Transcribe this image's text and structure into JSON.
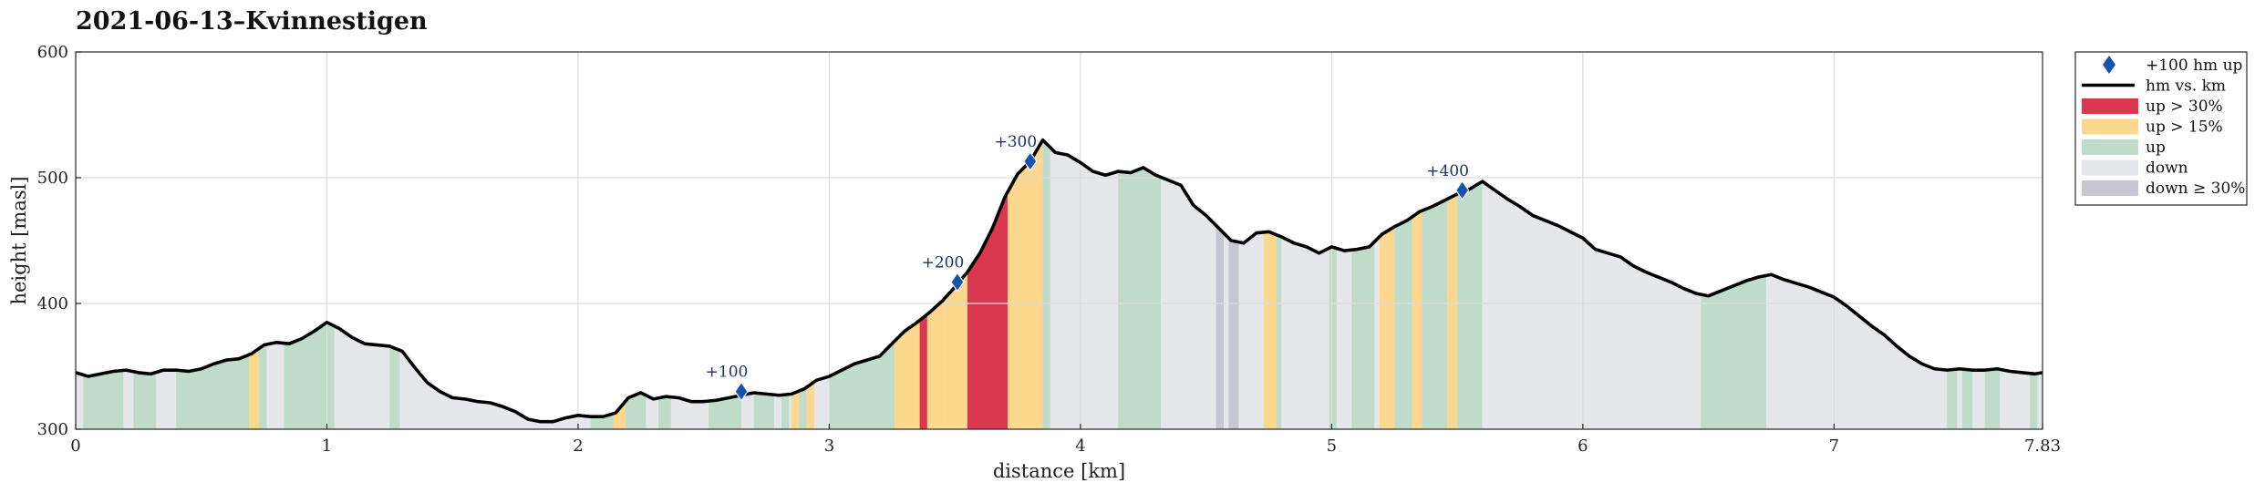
{
  "chart_data": {
    "type": "area",
    "title": "2021-06-13–Kvinnestigen",
    "xlabel": "distance [km]",
    "ylabel": "height [masl]",
    "xlim": [
      0,
      7.83
    ],
    "ylim": [
      300,
      600
    ],
    "x_ticks": [
      "0",
      "1",
      "2",
      "3",
      "4",
      "5",
      "6",
      "7",
      "7.83"
    ],
    "x_tick_values": [
      0,
      1,
      2,
      3,
      4,
      5,
      6,
      7,
      7.83
    ],
    "y_ticks": [
      "300",
      "400",
      "500",
      "600"
    ],
    "y_tick_values": [
      300,
      400,
      500,
      600
    ],
    "grid": true,
    "legend_position": "outside-top-right",
    "colors": {
      "line": "#000000",
      "up30": "#d9384e",
      "up15": "#fbd88d",
      "up": "#bfdcca",
      "down": "#e6e7eb",
      "down30": "#c6c7d0",
      "marker": "#1553b0",
      "annotation": "#1e2f6b",
      "grid": "#dcdcdc"
    },
    "legend": [
      {
        "label": "+100 hm up",
        "kind": "marker"
      },
      {
        "label": "hm vs. km",
        "kind": "line"
      },
      {
        "label": "up > 30%",
        "kind": "up30"
      },
      {
        "label": "up > 15%",
        "kind": "up15"
      },
      {
        "label": "up",
        "kind": "up"
      },
      {
        "label": "down",
        "kind": "down"
      },
      {
        "label": "down ≥ 30%",
        "kind": "down30"
      }
    ],
    "profile": [
      [
        0.0,
        345
      ],
      [
        0.05,
        342
      ],
      [
        0.1,
        344
      ],
      [
        0.15,
        346
      ],
      [
        0.2,
        347
      ],
      [
        0.25,
        345
      ],
      [
        0.3,
        344
      ],
      [
        0.35,
        347
      ],
      [
        0.4,
        347
      ],
      [
        0.45,
        346
      ],
      [
        0.5,
        348
      ],
      [
        0.55,
        352
      ],
      [
        0.6,
        355
      ],
      [
        0.65,
        356
      ],
      [
        0.7,
        360
      ],
      [
        0.75,
        367
      ],
      [
        0.8,
        369
      ],
      [
        0.85,
        368
      ],
      [
        0.9,
        372
      ],
      [
        0.95,
        378
      ],
      [
        1.0,
        385
      ],
      [
        1.05,
        380
      ],
      [
        1.1,
        373
      ],
      [
        1.15,
        368
      ],
      [
        1.2,
        367
      ],
      [
        1.25,
        366
      ],
      [
        1.3,
        362
      ],
      [
        1.35,
        349
      ],
      [
        1.4,
        337
      ],
      [
        1.45,
        330
      ],
      [
        1.5,
        325
      ],
      [
        1.55,
        324
      ],
      [
        1.6,
        322
      ],
      [
        1.65,
        321
      ],
      [
        1.7,
        318
      ],
      [
        1.75,
        314
      ],
      [
        1.8,
        308
      ],
      [
        1.85,
        306
      ],
      [
        1.9,
        306
      ],
      [
        1.95,
        309
      ],
      [
        2.0,
        311
      ],
      [
        2.05,
        310
      ],
      [
        2.1,
        310
      ],
      [
        2.15,
        313
      ],
      [
        2.2,
        325
      ],
      [
        2.25,
        329
      ],
      [
        2.3,
        324
      ],
      [
        2.35,
        326
      ],
      [
        2.4,
        325
      ],
      [
        2.45,
        322
      ],
      [
        2.5,
        322
      ],
      [
        2.55,
        323
      ],
      [
        2.6,
        325
      ],
      [
        2.65,
        327
      ],
      [
        2.7,
        329
      ],
      [
        2.75,
        328
      ],
      [
        2.8,
        327
      ],
      [
        2.85,
        328
      ],
      [
        2.9,
        332
      ],
      [
        2.95,
        339
      ],
      [
        3.0,
        342
      ],
      [
        3.05,
        347
      ],
      [
        3.1,
        352
      ],
      [
        3.15,
        355
      ],
      [
        3.2,
        358
      ],
      [
        3.25,
        368
      ],
      [
        3.3,
        378
      ],
      [
        3.35,
        385
      ],
      [
        3.4,
        393
      ],
      [
        3.45,
        402
      ],
      [
        3.5,
        413
      ],
      [
        3.55,
        425
      ],
      [
        3.6,
        440
      ],
      [
        3.65,
        460
      ],
      [
        3.7,
        485
      ],
      [
        3.75,
        503
      ],
      [
        3.8,
        513
      ],
      [
        3.85,
        530
      ],
      [
        3.9,
        520
      ],
      [
        3.95,
        518
      ],
      [
        4.0,
        512
      ],
      [
        4.05,
        505
      ],
      [
        4.1,
        502
      ],
      [
        4.15,
        505
      ],
      [
        4.2,
        504
      ],
      [
        4.25,
        508
      ],
      [
        4.3,
        502
      ],
      [
        4.35,
        498
      ],
      [
        4.4,
        494
      ],
      [
        4.45,
        478
      ],
      [
        4.5,
        470
      ],
      [
        4.55,
        460
      ],
      [
        4.6,
        450
      ],
      [
        4.65,
        448
      ],
      [
        4.7,
        456
      ],
      [
        4.75,
        457
      ],
      [
        4.8,
        453
      ],
      [
        4.85,
        448
      ],
      [
        4.9,
        445
      ],
      [
        4.95,
        440
      ],
      [
        5.0,
        445
      ],
      [
        5.05,
        442
      ],
      [
        5.1,
        443
      ],
      [
        5.15,
        445
      ],
      [
        5.2,
        455
      ],
      [
        5.25,
        461
      ],
      [
        5.3,
        466
      ],
      [
        5.35,
        473
      ],
      [
        5.4,
        477
      ],
      [
        5.45,
        482
      ],
      [
        5.5,
        487
      ],
      [
        5.55,
        491
      ],
      [
        5.6,
        497
      ],
      [
        5.65,
        490
      ],
      [
        5.7,
        483
      ],
      [
        5.75,
        477
      ],
      [
        5.8,
        470
      ],
      [
        5.85,
        466
      ],
      [
        5.9,
        462
      ],
      [
        5.95,
        457
      ],
      [
        6.0,
        452
      ],
      [
        6.05,
        443
      ],
      [
        6.1,
        440
      ],
      [
        6.15,
        437
      ],
      [
        6.2,
        430
      ],
      [
        6.25,
        425
      ],
      [
        6.3,
        421
      ],
      [
        6.35,
        417
      ],
      [
        6.4,
        412
      ],
      [
        6.45,
        408
      ],
      [
        6.5,
        406
      ],
      [
        6.55,
        410
      ],
      [
        6.6,
        414
      ],
      [
        6.65,
        418
      ],
      [
        6.7,
        421
      ],
      [
        6.75,
        423
      ],
      [
        6.8,
        419
      ],
      [
        6.85,
        416
      ],
      [
        6.9,
        413
      ],
      [
        6.95,
        409
      ],
      [
        7.0,
        405
      ],
      [
        7.05,
        398
      ],
      [
        7.1,
        390
      ],
      [
        7.15,
        382
      ],
      [
        7.2,
        375
      ],
      [
        7.25,
        366
      ],
      [
        7.3,
        358
      ],
      [
        7.35,
        352
      ],
      [
        7.4,
        348
      ],
      [
        7.45,
        347
      ],
      [
        7.5,
        348
      ],
      [
        7.55,
        347
      ],
      [
        7.6,
        347
      ],
      [
        7.65,
        348
      ],
      [
        7.7,
        346
      ],
      [
        7.75,
        345
      ],
      [
        7.8,
        344
      ],
      [
        7.83,
        345
      ]
    ],
    "segments": [
      {
        "from": 0.03,
        "to": 0.19,
        "kind": "up"
      },
      {
        "from": 0.23,
        "to": 0.32,
        "kind": "up"
      },
      {
        "from": 0.4,
        "to": 0.69,
        "kind": "up"
      },
      {
        "from": 0.69,
        "to": 0.73,
        "kind": "up15"
      },
      {
        "from": 0.73,
        "to": 0.76,
        "kind": "up"
      },
      {
        "from": 0.83,
        "to": 1.03,
        "kind": "up"
      },
      {
        "from": 1.25,
        "to": 1.29,
        "kind": "up"
      },
      {
        "from": 2.05,
        "to": 2.14,
        "kind": "up"
      },
      {
        "from": 2.14,
        "to": 2.19,
        "kind": "up15"
      },
      {
        "from": 2.19,
        "to": 2.27,
        "kind": "up"
      },
      {
        "from": 2.32,
        "to": 2.37,
        "kind": "up"
      },
      {
        "from": 2.52,
        "to": 2.65,
        "kind": "up"
      },
      {
        "from": 2.7,
        "to": 2.78,
        "kind": "up"
      },
      {
        "from": 2.81,
        "to": 2.84,
        "kind": "up"
      },
      {
        "from": 2.85,
        "to": 2.88,
        "kind": "up15"
      },
      {
        "from": 2.88,
        "to": 2.91,
        "kind": "up"
      },
      {
        "from": 2.91,
        "to": 2.94,
        "kind": "up15"
      },
      {
        "from": 3.0,
        "to": 3.26,
        "kind": "up"
      },
      {
        "from": 3.26,
        "to": 3.36,
        "kind": "up15"
      },
      {
        "from": 3.36,
        "to": 3.39,
        "kind": "up30"
      },
      {
        "from": 3.39,
        "to": 3.46,
        "kind": "up15"
      },
      {
        "from": 3.46,
        "to": 3.55,
        "kind": "up15"
      },
      {
        "from": 3.55,
        "to": 3.71,
        "kind": "up30"
      },
      {
        "from": 3.71,
        "to": 3.85,
        "kind": "up15"
      },
      {
        "from": 3.85,
        "to": 3.88,
        "kind": "up"
      },
      {
        "from": 4.15,
        "to": 4.32,
        "kind": "up"
      },
      {
        "from": 4.54,
        "to": 4.57,
        "kind": "down30"
      },
      {
        "from": 4.59,
        "to": 4.63,
        "kind": "down30"
      },
      {
        "from": 4.73,
        "to": 4.78,
        "kind": "up15"
      },
      {
        "from": 4.78,
        "to": 4.8,
        "kind": "up"
      },
      {
        "from": 4.99,
        "to": 5.02,
        "kind": "up"
      },
      {
        "from": 5.08,
        "to": 5.17,
        "kind": "up"
      },
      {
        "from": 5.19,
        "to": 5.25,
        "kind": "up15"
      },
      {
        "from": 5.25,
        "to": 5.32,
        "kind": "up"
      },
      {
        "from": 5.32,
        "to": 5.36,
        "kind": "up15"
      },
      {
        "from": 5.36,
        "to": 5.46,
        "kind": "up"
      },
      {
        "from": 5.46,
        "to": 5.5,
        "kind": "up15"
      },
      {
        "from": 5.5,
        "to": 5.6,
        "kind": "up"
      },
      {
        "from": 6.47,
        "to": 6.73,
        "kind": "up"
      },
      {
        "from": 7.45,
        "to": 7.49,
        "kind": "up"
      },
      {
        "from": 7.51,
        "to": 7.55,
        "kind": "up"
      },
      {
        "from": 7.6,
        "to": 7.66,
        "kind": "up"
      },
      {
        "from": 7.78,
        "to": 7.81,
        "kind": "up"
      }
    ],
    "markers": [
      {
        "x": 2.65,
        "y": 330,
        "label": "+100"
      },
      {
        "x": 3.51,
        "y": 417,
        "label": "+200"
      },
      {
        "x": 3.8,
        "y": 513,
        "label": "+300"
      },
      {
        "x": 5.52,
        "y": 490,
        "label": "+400"
      }
    ]
  }
}
